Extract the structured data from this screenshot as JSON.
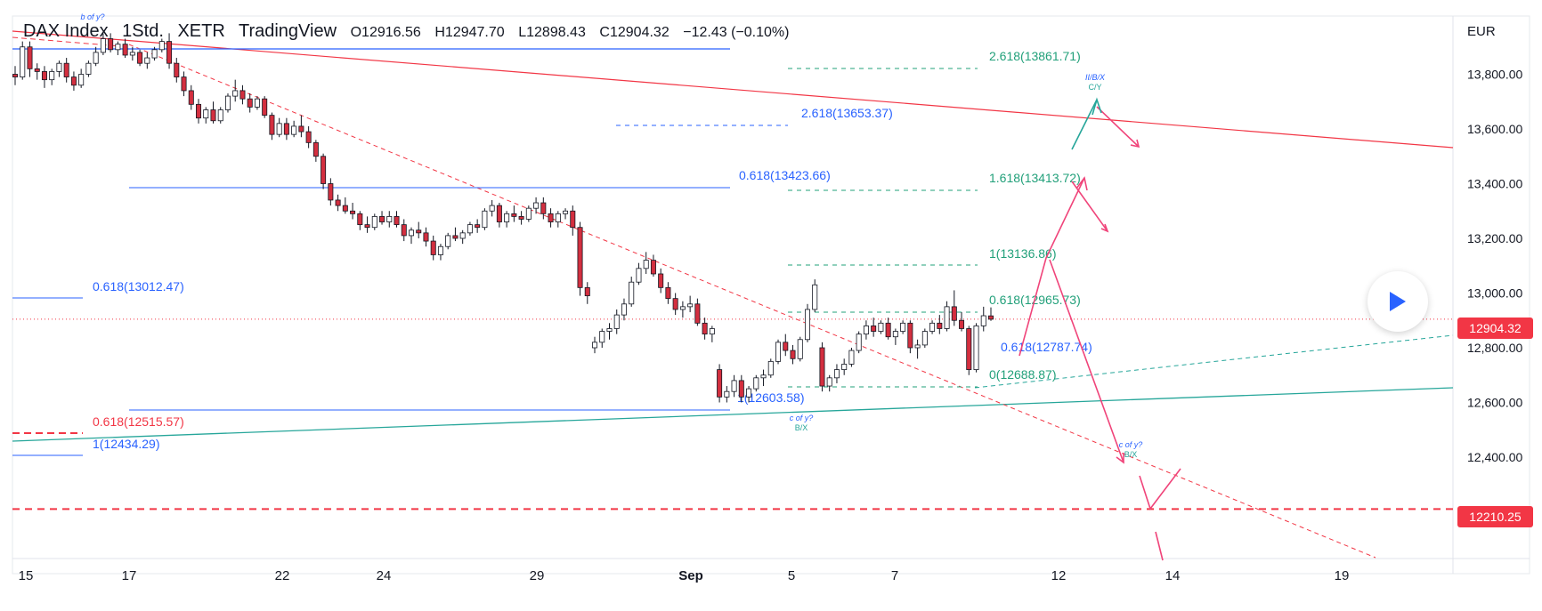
{
  "header": {
    "symbol": "DAX Index",
    "interval": "1Std.",
    "exchange": "XETR",
    "source": "TradingView",
    "open": "O12916.56",
    "high": "H12947.70",
    "low": "L12898.43",
    "close": "C12904.32",
    "change": "−12.43 (−0.10%)"
  },
  "axis": {
    "currency": "EUR",
    "last_price": "12904.32",
    "level_price": "12210.25"
  },
  "colors": {
    "up_candle": "#ffffff",
    "down_candle": "#d32f3f",
    "candle_outline": "#131722",
    "blue_fib": "#2962ff",
    "green_fib": "#22a07a",
    "red_trend": "#f23645",
    "green_trend": "#26a69a",
    "pink_path": "#f0447a",
    "green_path": "#26a69a",
    "last_price_tag": "#f23645"
  },
  "chart_data": {
    "type": "candlestick",
    "title": "DAX Index 1Std. XETR",
    "y_axis": {
      "ylim": [
        12000,
        14000
      ],
      "ticks": [
        12400,
        12600,
        12800,
        13000,
        13200,
        13400,
        13600,
        13800
      ]
    },
    "x_ticks": [
      "15",
      "17",
      "22",
      "24",
      "29",
      "Sep",
      "5",
      "7",
      "12",
      "14",
      "19"
    ],
    "ohlc_header": {
      "open": 12916.56,
      "high": 12947.7,
      "low": 12898.43,
      "close": 12904.32,
      "change": -12.43,
      "change_pct": -0.1
    },
    "candles": [
      [
        13800,
        13830,
        13760,
        13790
      ],
      [
        13790,
        13920,
        13780,
        13900
      ],
      [
        13900,
        13920,
        13790,
        13820
      ],
      [
        13820,
        13840,
        13780,
        13810
      ],
      [
        13810,
        13830,
        13750,
        13780
      ],
      [
        13780,
        13820,
        13760,
        13810
      ],
      [
        13810,
        13850,
        13790,
        13840
      ],
      [
        13840,
        13860,
        13770,
        13790
      ],
      [
        13790,
        13810,
        13740,
        13760
      ],
      [
        13760,
        13820,
        13750,
        13800
      ],
      [
        13800,
        13850,
        13790,
        13840
      ],
      [
        13840,
        13900,
        13830,
        13880
      ],
      [
        13880,
        13950,
        13870,
        13930
      ],
      [
        13930,
        13950,
        13880,
        13890
      ],
      [
        13890,
        13920,
        13870,
        13910
      ],
      [
        13910,
        13930,
        13860,
        13870
      ],
      [
        13870,
        13900,
        13850,
        13880
      ],
      [
        13880,
        13890,
        13830,
        13840
      ],
      [
        13840,
        13880,
        13820,
        13860
      ],
      [
        13860,
        13900,
        13850,
        13890
      ],
      [
        13890,
        13930,
        13880,
        13920
      ],
      [
        13920,
        13950,
        13820,
        13840
      ],
      [
        13840,
        13860,
        13770,
        13790
      ],
      [
        13790,
        13810,
        13720,
        13740
      ],
      [
        13740,
        13760,
        13670,
        13690
      ],
      [
        13690,
        13710,
        13620,
        13640
      ],
      [
        13640,
        13680,
        13620,
        13670
      ],
      [
        13670,
        13700,
        13620,
        13630
      ],
      [
        13630,
        13680,
        13620,
        13670
      ],
      [
        13670,
        13730,
        13660,
        13720
      ],
      [
        13720,
        13780,
        13700,
        13740
      ],
      [
        13740,
        13760,
        13690,
        13710
      ],
      [
        13710,
        13730,
        13660,
        13680
      ],
      [
        13680,
        13720,
        13670,
        13710
      ],
      [
        13710,
        13720,
        13640,
        13650
      ],
      [
        13650,
        13660,
        13560,
        13580
      ],
      [
        13580,
        13640,
        13570,
        13620
      ],
      [
        13620,
        13640,
        13560,
        13580
      ],
      [
        13580,
        13630,
        13570,
        13610
      ],
      [
        13610,
        13650,
        13570,
        13590
      ],
      [
        13590,
        13610,
        13530,
        13550
      ],
      [
        13550,
        13560,
        13480,
        13500
      ],
      [
        13500,
        13510,
        13380,
        13400
      ],
      [
        13400,
        13420,
        13320,
        13340
      ],
      [
        13340,
        13360,
        13300,
        13320
      ],
      [
        13320,
        13350,
        13290,
        13300
      ],
      [
        13300,
        13330,
        13270,
        13290
      ],
      [
        13290,
        13300,
        13230,
        13250
      ],
      [
        13250,
        13280,
        13220,
        13240
      ],
      [
        13240,
        13290,
        13230,
        13280
      ],
      [
        13280,
        13300,
        13250,
        13260
      ],
      [
        13260,
        13300,
        13240,
        13280
      ],
      [
        13280,
        13300,
        13240,
        13250
      ],
      [
        13250,
        13270,
        13190,
        13210
      ],
      [
        13210,
        13240,
        13180,
        13230
      ],
      [
        13230,
        13260,
        13200,
        13220
      ],
      [
        13220,
        13240,
        13170,
        13190
      ],
      [
        13190,
        13210,
        13120,
        13140
      ],
      [
        13140,
        13180,
        13120,
        13170
      ],
      [
        13170,
        13220,
        13160,
        13210
      ],
      [
        13210,
        13240,
        13190,
        13200
      ],
      [
        13200,
        13230,
        13180,
        13220
      ],
      [
        13220,
        13260,
        13210,
        13250
      ],
      [
        13250,
        13270,
        13220,
        13240
      ],
      [
        13240,
        13310,
        13230,
        13300
      ],
      [
        13300,
        13340,
        13280,
        13320
      ],
      [
        13320,
        13330,
        13240,
        13260
      ],
      [
        13260,
        13300,
        13240,
        13290
      ],
      [
        13290,
        13320,
        13260,
        13280
      ],
      [
        13280,
        13300,
        13250,
        13270
      ],
      [
        13270,
        13320,
        13260,
        13310
      ],
      [
        13310,
        13350,
        13290,
        13330
      ],
      [
        13330,
        13350,
        13270,
        13290
      ],
      [
        13290,
        13310,
        13240,
        13260
      ],
      [
        13260,
        13300,
        13240,
        13290
      ],
      [
        13290,
        13310,
        13270,
        13300
      ],
      [
        13300,
        13320,
        13210,
        13240
      ],
      [
        13240,
        13260,
        12990,
        13020
      ],
      [
        13020,
        13040,
        12960,
        12990
      ],
      [
        12800,
        12840,
        12780,
        12820
      ],
      [
        12820,
        12870,
        12800,
        12860
      ],
      [
        12860,
        12890,
        12830,
        12870
      ],
      [
        12870,
        12940,
        12850,
        12920
      ],
      [
        12920,
        12980,
        12900,
        12960
      ],
      [
        12960,
        13060,
        12950,
        13040
      ],
      [
        13040,
        13110,
        13030,
        13090
      ],
      [
        13090,
        13150,
        13070,
        13120
      ],
      [
        13120,
        13140,
        13060,
        13070
      ],
      [
        13070,
        13090,
        13000,
        13020
      ],
      [
        13020,
        13040,
        12960,
        12980
      ],
      [
        12980,
        13000,
        12920,
        12940
      ],
      [
        12940,
        12970,
        12910,
        12950
      ],
      [
        12950,
        12990,
        12930,
        12960
      ],
      [
        12960,
        12980,
        12880,
        12890
      ],
      [
        12890,
        12910,
        12830,
        12850
      ],
      [
        12850,
        12880,
        12820,
        12870
      ],
      [
        12720,
        12740,
        12600,
        12620
      ],
      [
        12620,
        12660,
        12600,
        12640
      ],
      [
        12640,
        12700,
        12620,
        12680
      ],
      [
        12680,
        12700,
        12600,
        12620
      ],
      [
        12620,
        12660,
        12600,
        12650
      ],
      [
        12650,
        12700,
        12640,
        12690
      ],
      [
        12690,
        12720,
        12660,
        12700
      ],
      [
        12700,
        12760,
        12690,
        12750
      ],
      [
        12750,
        12830,
        12740,
        12820
      ],
      [
        12820,
        12850,
        12770,
        12790
      ],
      [
        12790,
        12810,
        12740,
        12760
      ],
      [
        12760,
        12840,
        12750,
        12830
      ],
      [
        12830,
        12960,
        12820,
        12940
      ],
      [
        12940,
        13050,
        12930,
        13030
      ],
      [
        12800,
        12820,
        12640,
        12660
      ],
      [
        12660,
        12700,
        12640,
        12690
      ],
      [
        12690,
        12740,
        12670,
        12720
      ],
      [
        12720,
        12760,
        12700,
        12740
      ],
      [
        12740,
        12800,
        12730,
        12790
      ],
      [
        12790,
        12860,
        12780,
        12850
      ],
      [
        12850,
        12900,
        12830,
        12880
      ],
      [
        12880,
        12910,
        12840,
        12860
      ],
      [
        12860,
        12900,
        12850,
        12890
      ],
      [
        12890,
        12910,
        12830,
        12840
      ],
      [
        12840,
        12870,
        12810,
        12860
      ],
      [
        12860,
        12900,
        12850,
        12890
      ],
      [
        12890,
        12900,
        12780,
        12800
      ],
      [
        12800,
        12830,
        12760,
        12810
      ],
      [
        12810,
        12870,
        12800,
        12860
      ],
      [
        12860,
        12900,
        12850,
        12890
      ],
      [
        12890,
        12920,
        12850,
        12870
      ],
      [
        12870,
        12970,
        12860,
        12950
      ],
      [
        12950,
        13010,
        12880,
        12900
      ],
      [
        12900,
        12930,
        12860,
        12870
      ],
      [
        12870,
        12880,
        12700,
        12720
      ],
      [
        12720,
        12890,
        12710,
        12880
      ],
      [
        12880,
        12950,
        12860,
        12917
      ],
      [
        12916.56,
        12947.7,
        12898.43,
        12904.32
      ]
    ],
    "fib_levels": [
      {
        "label": "0.618(13012.47)",
        "value": 13012.47,
        "color": "blue"
      },
      {
        "label": "0.618(12515.57)",
        "value": 12515.57,
        "color": "red"
      },
      {
        "label": "1(12434.29)",
        "value": 12434.29,
        "color": "blue"
      },
      {
        "label": "0.618(13423.66)",
        "value": 13423.66,
        "color": "blue"
      },
      {
        "label": "1(12603.58)",
        "value": 12603.58,
        "color": "blue"
      },
      {
        "label": "2.618(13653.37)",
        "value": 13653.37,
        "color": "blue"
      },
      {
        "label": "2.618(13861.71)",
        "value": 13861.71,
        "color": "green"
      },
      {
        "label": "1.618(13413.72)",
        "value": 13413.72,
        "color": "green"
      },
      {
        "label": "1(13136.86)",
        "value": 13136.86,
        "color": "green"
      },
      {
        "label": "0.618(12965.73)",
        "value": 12965.73,
        "color": "green"
      },
      {
        "label": "0.618(12787.74)",
        "value": 12787.74,
        "color": "blue"
      },
      {
        "label": "0(12688.87)",
        "value": 12688.87,
        "color": "green"
      }
    ],
    "wave_labels": [
      {
        "text": "b of y?",
        "color": "blue"
      },
      {
        "text": "c of y?",
        "sub": "B/X",
        "color": "blue"
      },
      {
        "text": "c of y?",
        "sub": "B/X",
        "color": "blue"
      },
      {
        "text": "II/B/X",
        "sub": "C/Y",
        "color": "blue"
      }
    ],
    "horizontal_levels": [
      {
        "value": 12210.25,
        "style": "dashed",
        "color": "red"
      },
      {
        "value": 12904.32,
        "style": "dotted",
        "color": "red"
      }
    ]
  }
}
